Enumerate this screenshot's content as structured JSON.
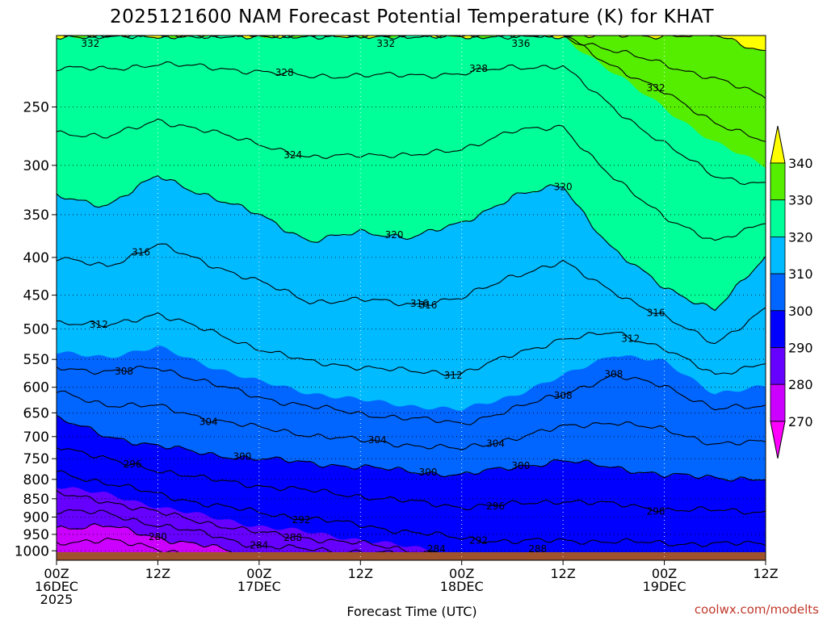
{
  "chart_data": {
    "type": "heatmap",
    "title": "2025121600 NAM Forecast Potential Temperature (K) for KHAT",
    "xlabel": "Forecast Time (UTC)",
    "ylabel": "",
    "y_axis": {
      "scale": "log",
      "reversed": true,
      "range": [
        1030,
        200
      ],
      "ticks": [
        250,
        300,
        350,
        400,
        450,
        500,
        550,
        600,
        650,
        700,
        750,
        800,
        850,
        900,
        950,
        1000
      ]
    },
    "x_axis": {
      "range_hours": [
        0,
        84
      ],
      "ticks": [
        {
          "h": 0,
          "line1": "00Z",
          "line2": "16DEC",
          "line3": "2025"
        },
        {
          "h": 12,
          "line1": "12Z",
          "line2": "",
          "line3": ""
        },
        {
          "h": 24,
          "line1": "00Z",
          "line2": "17DEC",
          "line3": ""
        },
        {
          "h": 36,
          "line1": "12Z",
          "line2": "",
          "line3": ""
        },
        {
          "h": 48,
          "line1": "00Z",
          "line2": "18DEC",
          "line3": ""
        },
        {
          "h": 60,
          "line1": "12Z",
          "line2": "",
          "line3": ""
        },
        {
          "h": 72,
          "line1": "00Z",
          "line2": "19DEC",
          "line3": ""
        },
        {
          "h": 84,
          "line1": "12Z",
          "line2": "",
          "line3": ""
        }
      ]
    },
    "grid": true,
    "colorbar": {
      "levels": [
        270,
        280,
        290,
        300,
        310,
        320,
        330,
        340
      ],
      "colors": [
        "#ff00ff",
        "#cc00ff",
        "#6600ff",
        "#0000ff",
        "#0066ff",
        "#00bbff",
        "#00ff99",
        "#55ee00",
        "#ffff00"
      ],
      "labels": [
        "270",
        "280",
        "290",
        "300",
        "310",
        "320",
        "330",
        "340"
      ],
      "extend": "both"
    },
    "contour_interval": 4,
    "contour_labels": [
      "332",
      "332",
      "336",
      "328",
      "328",
      "332",
      "324",
      "320",
      "316",
      "316",
      "316",
      "320",
      "312",
      "312",
      "312",
      "316",
      "308",
      "308",
      "308",
      "304",
      "304",
      "304",
      "296",
      "300",
      "300",
      "300",
      "292",
      "296",
      "296",
      "288",
      "292",
      "284",
      "284",
      "288",
      "280"
    ],
    "ground_color": "#a0522d",
    "columns_hours": [
      0,
      6,
      12,
      18,
      24,
      30,
      36,
      42,
      48,
      54,
      60,
      66,
      72,
      78,
      84
    ],
    "isotherm_pressures": {
      "280": [
        930,
        925,
        960,
        985,
        1030,
        1030,
        1030,
        1030,
        1030,
        1030,
        1030,
        1030,
        1030,
        1030,
        1030
      ],
      "290": [
        815,
        840,
        870,
        900,
        925,
        945,
        965,
        990,
        1010,
        1030,
        1030,
        1030,
        1030,
        1030,
        1030
      ],
      "300": [
        660,
        700,
        720,
        740,
        750,
        760,
        770,
        780,
        790,
        770,
        755,
        770,
        790,
        795,
        800
      ],
      "310": [
        540,
        545,
        530,
        560,
        590,
        610,
        625,
        635,
        645,
        615,
        580,
        540,
        555,
        610,
        600
      ],
      "320": [
        330,
        340,
        310,
        330,
        350,
        380,
        370,
        375,
        360,
        330,
        320,
        390,
        440,
        470,
        400
      ],
      "330": [
        200,
        200,
        200,
        200,
        200,
        200,
        200,
        200,
        200,
        200,
        200,
        225,
        250,
        280,
        300
      ],
      "340": [
        200,
        200,
        200,
        200,
        200,
        200,
        200,
        200,
        200,
        200,
        200,
        200,
        200,
        200,
        210
      ]
    }
  },
  "credit": "coolwx.com/modelts"
}
